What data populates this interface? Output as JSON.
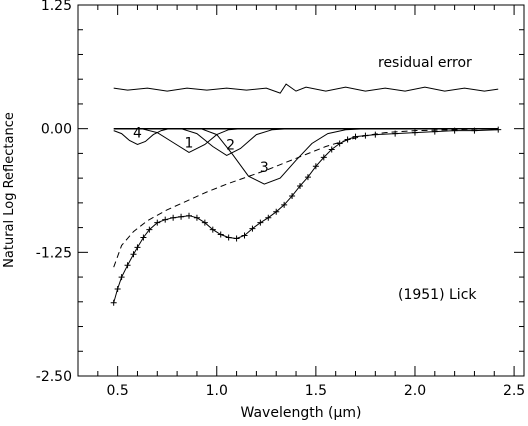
{
  "chart_data": {
    "type": "line",
    "xlabel": "Wavelength (μm)",
    "ylabel": "Natural Log Reflectance",
    "xlim": [
      0.3,
      2.55
    ],
    "ylim": [
      -2.5,
      1.25
    ],
    "xticks": [
      0.5,
      1.0,
      1.5,
      2.0,
      2.5
    ],
    "xtick_labels": [
      "0.5",
      "1.0",
      "1.5",
      "2.0",
      "2.5"
    ],
    "yticks": [
      1.25,
      0.0,
      -1.25,
      -2.5
    ],
    "ytick_labels": [
      "1.25",
      "0.00",
      "-1.25",
      "-2.50"
    ],
    "x_minor_step": 0.1,
    "y_minor_step": 0.25,
    "grid": false,
    "annotations": {
      "residual": "residual error",
      "object": "(1951) Lick",
      "band_labels": [
        {
          "text": "4",
          "x": 0.6,
          "y": -0.09
        },
        {
          "text": "1",
          "x": 0.86,
          "y": -0.19
        },
        {
          "text": "2",
          "x": 1.07,
          "y": -0.21
        },
        {
          "text": "3",
          "x": 1.24,
          "y": -0.44
        }
      ]
    },
    "series": [
      {
        "style": "solid-line",
        "points": [
          [
            0.48,
            0.0
          ],
          [
            2.42,
            0.0
          ]
        ]
      },
      {
        "style": "solid-line",
        "points": [
          [
            0.48,
            0.41
          ],
          [
            0.55,
            0.39
          ],
          [
            0.65,
            0.41
          ],
          [
            0.75,
            0.38
          ],
          [
            0.85,
            0.41
          ],
          [
            0.95,
            0.39
          ],
          [
            1.05,
            0.41
          ],
          [
            1.15,
            0.39
          ],
          [
            1.25,
            0.41
          ],
          [
            1.32,
            0.36
          ],
          [
            1.35,
            0.45
          ],
          [
            1.4,
            0.38
          ],
          [
            1.45,
            0.42
          ],
          [
            1.55,
            0.38
          ],
          [
            1.65,
            0.42
          ],
          [
            1.75,
            0.38
          ],
          [
            1.85,
            0.41
          ],
          [
            1.95,
            0.38
          ],
          [
            2.05,
            0.42
          ],
          [
            2.15,
            0.38
          ],
          [
            2.25,
            0.41
          ],
          [
            2.35,
            0.38
          ],
          [
            2.42,
            0.4
          ]
        ]
      },
      {
        "style": "solid-line",
        "points": [
          [
            0.48,
            -0.02
          ],
          [
            0.52,
            -0.05
          ],
          [
            0.56,
            -0.12
          ],
          [
            0.6,
            -0.16
          ],
          [
            0.64,
            -0.13
          ],
          [
            0.68,
            -0.06
          ],
          [
            0.72,
            -0.02
          ],
          [
            0.76,
            0.0
          ]
        ]
      },
      {
        "style": "solid-line",
        "points": [
          [
            0.62,
            0.0
          ],
          [
            0.7,
            -0.04
          ],
          [
            0.78,
            -0.14
          ],
          [
            0.86,
            -0.24
          ],
          [
            0.94,
            -0.16
          ],
          [
            1.0,
            -0.06
          ],
          [
            1.06,
            -0.01
          ],
          [
            1.12,
            0.0
          ]
        ]
      },
      {
        "style": "solid-line",
        "points": [
          [
            0.82,
            0.0
          ],
          [
            0.9,
            -0.05
          ],
          [
            0.98,
            -0.18
          ],
          [
            1.05,
            -0.27
          ],
          [
            1.12,
            -0.2
          ],
          [
            1.2,
            -0.06
          ],
          [
            1.28,
            -0.01
          ],
          [
            1.36,
            0.0
          ]
        ]
      },
      {
        "style": "solid-line",
        "points": [
          [
            0.92,
            0.0
          ],
          [
            1.0,
            -0.06
          ],
          [
            1.08,
            -0.26
          ],
          [
            1.16,
            -0.48
          ],
          [
            1.24,
            -0.56
          ],
          [
            1.32,
            -0.5
          ],
          [
            1.4,
            -0.32
          ],
          [
            1.48,
            -0.15
          ],
          [
            1.56,
            -0.05
          ],
          [
            1.65,
            -0.01
          ],
          [
            1.75,
            0.0
          ]
        ]
      },
      {
        "style": "dashed-line",
        "points": [
          [
            0.48,
            -1.4
          ],
          [
            0.52,
            -1.18
          ],
          [
            0.58,
            -1.04
          ],
          [
            0.65,
            -0.93
          ],
          [
            0.75,
            -0.82
          ],
          [
            0.85,
            -0.73
          ],
          [
            0.95,
            -0.64
          ],
          [
            1.05,
            -0.56
          ],
          [
            1.15,
            -0.49
          ],
          [
            1.25,
            -0.42
          ],
          [
            1.35,
            -0.34
          ],
          [
            1.45,
            -0.26
          ],
          [
            1.55,
            -0.18
          ],
          [
            1.65,
            -0.12
          ],
          [
            1.75,
            -0.07
          ],
          [
            1.85,
            -0.04
          ],
          [
            2.0,
            -0.02
          ],
          [
            2.2,
            -0.01
          ],
          [
            2.42,
            0.0
          ]
        ]
      },
      {
        "style": "solid-line-with-plus-markers",
        "points": [
          [
            0.48,
            -1.76
          ],
          [
            0.5,
            -1.62
          ],
          [
            0.52,
            -1.5
          ],
          [
            0.55,
            -1.38
          ],
          [
            0.58,
            -1.27
          ],
          [
            0.6,
            -1.2
          ],
          [
            0.63,
            -1.1
          ],
          [
            0.66,
            -1.02
          ],
          [
            0.7,
            -0.95
          ],
          [
            0.74,
            -0.92
          ],
          [
            0.78,
            -0.9
          ],
          [
            0.82,
            -0.89
          ],
          [
            0.86,
            -0.88
          ],
          [
            0.9,
            -0.9
          ],
          [
            0.94,
            -0.95
          ],
          [
            0.98,
            -1.02
          ],
          [
            1.02,
            -1.07
          ],
          [
            1.06,
            -1.1
          ],
          [
            1.1,
            -1.11
          ],
          [
            1.14,
            -1.08
          ],
          [
            1.18,
            -1.01
          ],
          [
            1.22,
            -0.95
          ],
          [
            1.26,
            -0.9
          ],
          [
            1.3,
            -0.84
          ],
          [
            1.34,
            -0.77
          ],
          [
            1.38,
            -0.68
          ],
          [
            1.42,
            -0.58
          ],
          [
            1.46,
            -0.49
          ],
          [
            1.5,
            -0.38
          ],
          [
            1.54,
            -0.29
          ],
          [
            1.58,
            -0.21
          ],
          [
            1.62,
            -0.15
          ],
          [
            1.66,
            -0.11
          ],
          [
            1.7,
            -0.08
          ],
          [
            1.75,
            -0.07
          ],
          [
            1.8,
            -0.06
          ],
          [
            1.9,
            -0.05
          ],
          [
            2.0,
            -0.04
          ],
          [
            2.1,
            -0.03
          ],
          [
            2.2,
            -0.02
          ],
          [
            2.3,
            -0.02
          ],
          [
            2.42,
            -0.01
          ]
        ]
      }
    ]
  }
}
